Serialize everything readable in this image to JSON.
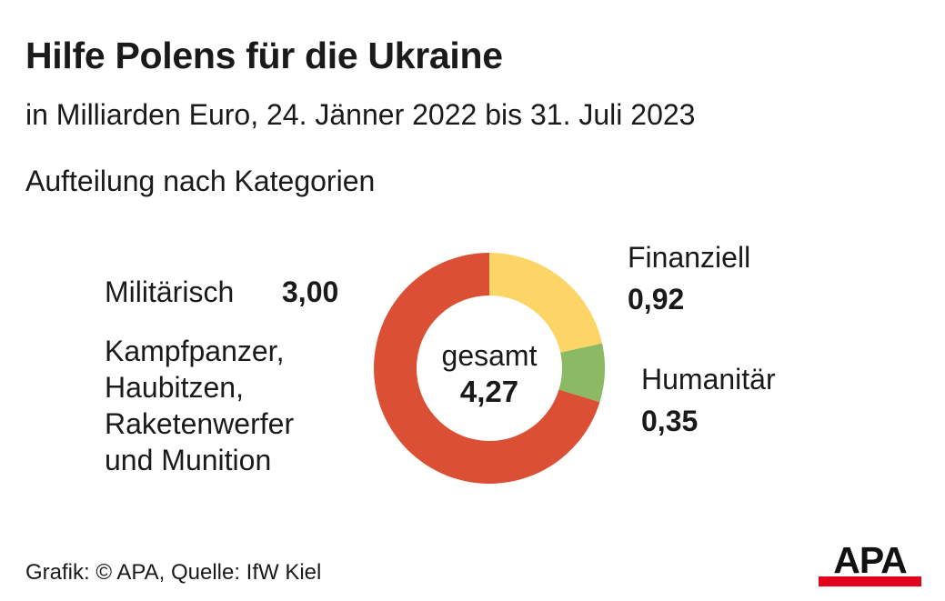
{
  "title": "Hilfe Polens für die Ukraine",
  "subtitle": "in Milliarden Euro, 24. Jänner 2022 bis 31. Juli 2023",
  "section": "Aufteilung nach Kategorien",
  "chart_data": {
    "type": "pie",
    "style": "donut",
    "center_label": "gesamt",
    "total_text": "4,27",
    "total": 4.27,
    "slices": [
      {
        "name": "Finanziell",
        "value": 0.92,
        "value_text": "0,92",
        "color": "#fdd566"
      },
      {
        "name": "Humanitär",
        "value": 0.35,
        "value_text": "0,35",
        "color": "#8cba64"
      },
      {
        "name": "Militärisch",
        "value": 3.0,
        "value_text": "3,00",
        "color": "#db4f35",
        "description": [
          "Kampfpanzer,",
          "Haubitzen,",
          "Raketenwerfer",
          "und Munition"
        ]
      }
    ]
  },
  "footer": "Grafik: © APA, Quelle: IfW Kiel",
  "logo": {
    "text": "APA",
    "colors": {
      "text": "#111111",
      "bar": "#e3001b"
    }
  }
}
